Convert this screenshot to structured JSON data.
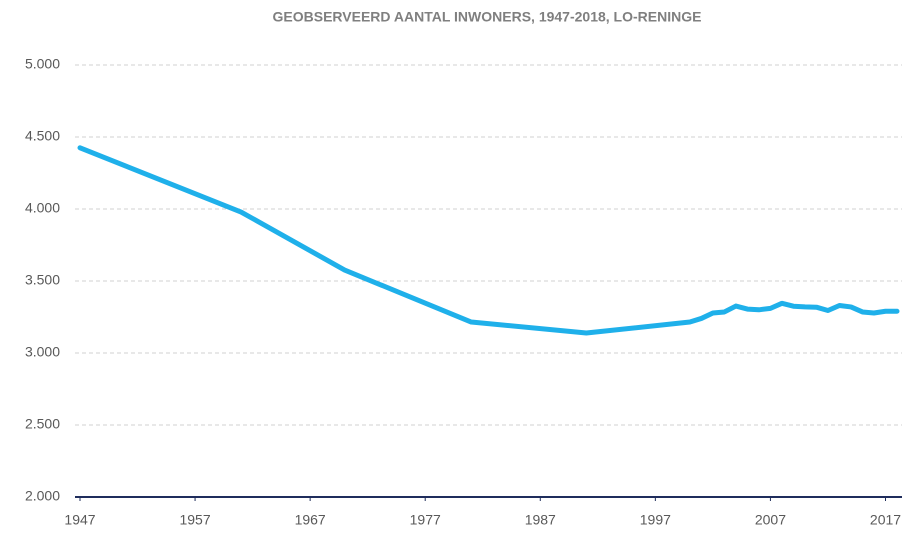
{
  "chart_data": {
    "type": "line",
    "title": "GEOBSERVEERD AANTAL INWONERS, 1947-2018, LO-RENINGE",
    "x": [
      1947,
      1961,
      1970,
      1981,
      1991,
      2000,
      2001,
      2002,
      2003,
      2004,
      2005,
      2006,
      2007,
      2008,
      2009,
      2010,
      2011,
      2012,
      2013,
      2014,
      2015,
      2016,
      2017,
      2018
    ],
    "series": [
      {
        "name": "Lo-Reninge",
        "color": "#1fb0ea",
        "values": [
          4425,
          3979,
          3576,
          3215,
          3139,
          3215,
          3240,
          3278,
          3285,
          3326,
          3305,
          3300,
          3310,
          3345,
          3325,
          3320,
          3318,
          3295,
          3330,
          3320,
          3285,
          3278,
          3290,
          3290
        ]
      }
    ],
    "xlim": [
      1947,
      2018
    ],
    "xticks": [
      1947,
      1957,
      1967,
      1977,
      1987,
      1997,
      2007,
      2017
    ],
    "ylim": [
      2000,
      5000
    ],
    "yticks": [
      {
        "value": 2000,
        "label": "2.000"
      },
      {
        "value": 2500,
        "label": "2.500"
      },
      {
        "value": 3000,
        "label": "3.000"
      },
      {
        "value": 3500,
        "label": "3.500"
      },
      {
        "value": 4000,
        "label": "4.000"
      },
      {
        "value": 4500,
        "label": "4.500"
      },
      {
        "value": 5000,
        "label": "5.000"
      }
    ],
    "grid": true
  }
}
